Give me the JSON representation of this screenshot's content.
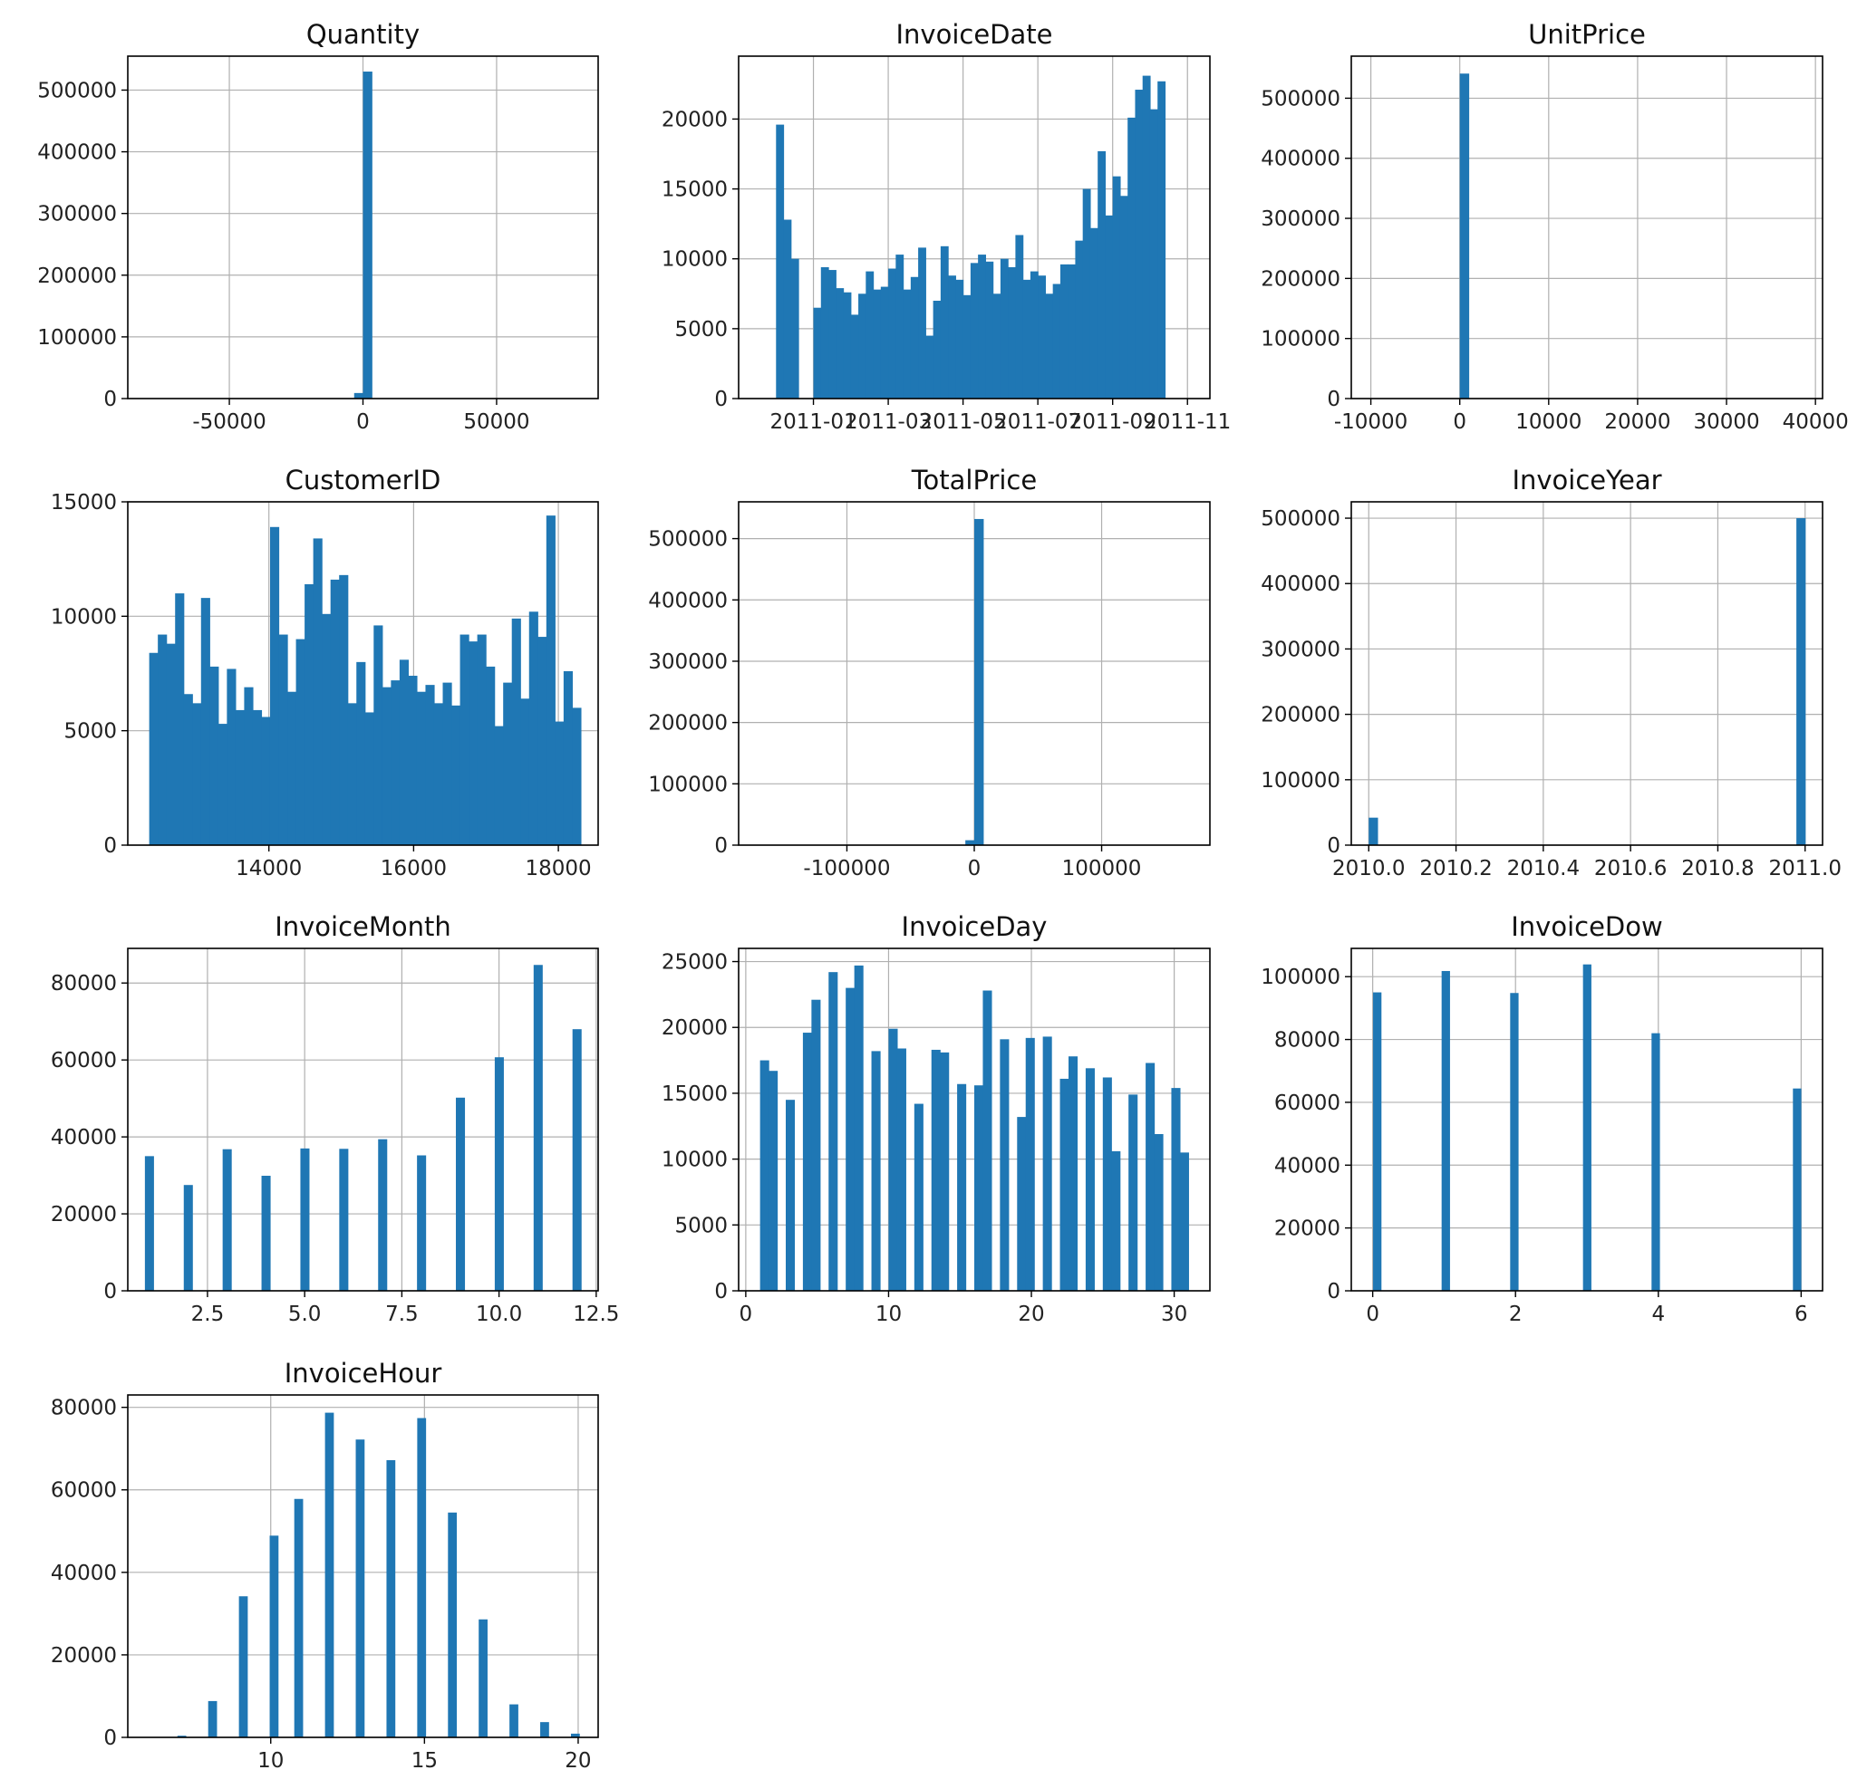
{
  "chart_data": [
    {
      "type": "bar",
      "title": "Quantity",
      "bar_color": "#1f77b4",
      "grid": true,
      "xlim": [
        -88000,
        88000
      ],
      "ylim": [
        0,
        555000
      ],
      "xticks": [
        {
          "v": -50000,
          "label": "-50000"
        },
        {
          "v": 0,
          "label": "0"
        },
        {
          "v": 50000,
          "label": "50000"
        }
      ],
      "yticks": [
        {
          "v": 0,
          "label": "0"
        },
        {
          "v": 100000,
          "label": "100000"
        },
        {
          "v": 200000,
          "label": "200000"
        },
        {
          "v": 300000,
          "label": "300000"
        },
        {
          "v": 400000,
          "label": "400000"
        },
        {
          "v": 500000,
          "label": "500000"
        }
      ],
      "bins": [
        [
          -3300,
          0,
          9000
        ],
        [
          0,
          3300,
          530000
        ]
      ]
    },
    {
      "type": "bar",
      "title": "InvoiceDate",
      "bar_color": "#1f77b4",
      "grid": true,
      "xlim": [
        -1.0,
        11.6
      ],
      "ylim": [
        0,
        24500
      ],
      "xticks": [
        {
          "v": 1,
          "label": "2011-01"
        },
        {
          "v": 3,
          "label": "2011-03"
        },
        {
          "v": 5,
          "label": "2011-05"
        },
        {
          "v": 7,
          "label": "2011-07"
        },
        {
          "v": 9,
          "label": "2011-09"
        },
        {
          "v": 11,
          "label": "2011-11"
        }
      ],
      "yticks": [
        {
          "v": 0,
          "label": "0"
        },
        {
          "v": 5000,
          "label": "5000"
        },
        {
          "v": 10000,
          "label": "10000"
        },
        {
          "v": 15000,
          "label": "15000"
        },
        {
          "v": 20000,
          "label": "20000"
        }
      ],
      "bin_start": 0.0,
      "bin_width": 0.2,
      "values": [
        19600,
        12800,
        10000,
        0,
        0,
        6500,
        9400,
        9200,
        7900,
        7600,
        6000,
        7500,
        9100,
        7800,
        8000,
        9300,
        10300,
        7800,
        8700,
        10800,
        4500,
        7000,
        10900,
        8800,
        8500,
        7400,
        9700,
        10300,
        9800,
        7500,
        10000,
        9400,
        11700,
        8500,
        9100,
        8800,
        7500,
        8200,
        9600,
        9600,
        11300,
        15000,
        12200,
        17700,
        13100,
        15900,
        14500,
        20100,
        22100,
        23100,
        20700,
        22700
      ]
    },
    {
      "type": "bar",
      "title": "UnitPrice",
      "bar_color": "#1f77b4",
      "grid": true,
      "xlim": [
        -12200,
        40800
      ],
      "ylim": [
        0,
        570000
      ],
      "xticks": [
        {
          "v": -10000,
          "label": "-10000"
        },
        {
          "v": 0,
          "label": "0"
        },
        {
          "v": 10000,
          "label": "10000"
        },
        {
          "v": 20000,
          "label": "20000"
        },
        {
          "v": 30000,
          "label": "30000"
        },
        {
          "v": 40000,
          "label": "40000"
        }
      ],
      "yticks": [
        {
          "v": 0,
          "label": "0"
        },
        {
          "v": 100000,
          "label": "100000"
        },
        {
          "v": 200000,
          "label": "200000"
        },
        {
          "v": 300000,
          "label": "300000"
        },
        {
          "v": 400000,
          "label": "400000"
        },
        {
          "v": 500000,
          "label": "500000"
        }
      ],
      "bins": [
        [
          0,
          1000,
          541000
        ]
      ]
    },
    {
      "type": "bar",
      "title": "CustomerID",
      "bar_color": "#1f77b4",
      "grid": true,
      "xlim": [
        12050,
        18550
      ],
      "ylim": [
        0,
        15000
      ],
      "xticks": [
        {
          "v": 14000,
          "label": "14000"
        },
        {
          "v": 16000,
          "label": "16000"
        },
        {
          "v": 18000,
          "label": "18000"
        }
      ],
      "yticks": [
        {
          "v": 0,
          "label": "0"
        },
        {
          "v": 5000,
          "label": "5000"
        },
        {
          "v": 10000,
          "label": "10000"
        },
        {
          "v": 15000,
          "label": "15000"
        }
      ],
      "bin_start": 12346,
      "bin_width": 119.3,
      "values": [
        8400,
        9200,
        8800,
        11000,
        6600,
        6200,
        10800,
        7800,
        5300,
        7700,
        5900,
        6900,
        5900,
        5600,
        13900,
        9200,
        6700,
        9000,
        11400,
        13400,
        10100,
        11600,
        11800,
        6200,
        8000,
        5800,
        9600,
        6900,
        7200,
        8100,
        7400,
        6700,
        7000,
        6200,
        7100,
        6100,
        9200,
        8900,
        9200,
        7800,
        5200,
        7100,
        9900,
        6400,
        10200,
        9100,
        14400,
        5400,
        7600,
        6000
      ]
    },
    {
      "type": "bar",
      "title": "TotalPrice",
      "bar_color": "#1f77b4",
      "grid": true,
      "xlim": [
        -185000,
        185000
      ],
      "ylim": [
        0,
        560000
      ],
      "xticks": [
        {
          "v": -100000,
          "label": "-100000"
        },
        {
          "v": 0,
          "label": "0"
        },
        {
          "v": 100000,
          "label": "100000"
        }
      ],
      "yticks": [
        {
          "v": 0,
          "label": "0"
        },
        {
          "v": 100000,
          "label": "100000"
        },
        {
          "v": 200000,
          "label": "200000"
        },
        {
          "v": 300000,
          "label": "300000"
        },
        {
          "v": 400000,
          "label": "400000"
        },
        {
          "v": 500000,
          "label": "500000"
        }
      ],
      "bins": [
        [
          -7000,
          0,
          8000
        ],
        [
          0,
          7000,
          532000
        ]
      ]
    },
    {
      "type": "bar",
      "title": "InvoiceYear",
      "bar_color": "#1f77b4",
      "grid": true,
      "xlim": [
        2009.96,
        2011.04
      ],
      "ylim": [
        0,
        525000
      ],
      "xticks": [
        {
          "v": 2010.0,
          "label": "2010.0"
        },
        {
          "v": 2010.2,
          "label": "2010.2"
        },
        {
          "v": 2010.4,
          "label": "2010.4"
        },
        {
          "v": 2010.6,
          "label": "2010.6"
        },
        {
          "v": 2010.8,
          "label": "2010.8"
        },
        {
          "v": 2011.0,
          "label": "2011.0"
        }
      ],
      "yticks": [
        {
          "v": 0,
          "label": "0"
        },
        {
          "v": 100000,
          "label": "100000"
        },
        {
          "v": 200000,
          "label": "200000"
        },
        {
          "v": 300000,
          "label": "300000"
        },
        {
          "v": 400000,
          "label": "400000"
        },
        {
          "v": 500000,
          "label": "500000"
        }
      ],
      "bins": [
        [
          2010.0,
          2010.02,
          42000
        ],
        [
          2010.98,
          2011.0,
          500000
        ]
      ]
    },
    {
      "type": "bar",
      "title": "InvoiceMonth",
      "bar_color": "#1f77b4",
      "grid": true,
      "xlim": [
        0.45,
        12.55
      ],
      "ylim": [
        0,
        89000
      ],
      "xticks": [
        {
          "v": 2.5,
          "label": "2.5"
        },
        {
          "v": 5.0,
          "label": "5.0"
        },
        {
          "v": 7.5,
          "label": "7.5"
        },
        {
          "v": 10.0,
          "label": "10.0"
        },
        {
          "v": 12.5,
          "label": "12.5"
        }
      ],
      "yticks": [
        {
          "v": 0,
          "label": "0"
        },
        {
          "v": 20000,
          "label": "20000"
        },
        {
          "v": 40000,
          "label": "40000"
        },
        {
          "v": 60000,
          "label": "60000"
        },
        {
          "v": 80000,
          "label": "80000"
        }
      ],
      "bar_width": 0.22,
      "points": [
        [
          1,
          35000
        ],
        [
          2,
          27500
        ],
        [
          3,
          36800
        ],
        [
          4,
          29900
        ],
        [
          5,
          37000
        ],
        [
          6,
          36900
        ],
        [
          7,
          39400
        ],
        [
          8,
          35200
        ],
        [
          9,
          50200
        ],
        [
          10,
          60700
        ],
        [
          11,
          84700
        ],
        [
          12,
          68000
        ]
      ]
    },
    {
      "type": "bar",
      "title": "InvoiceDay",
      "bar_color": "#1f77b4",
      "grid": true,
      "xlim": [
        -0.5,
        32.5
      ],
      "ylim": [
        0,
        26000
      ],
      "xticks": [
        {
          "v": 0,
          "label": "0"
        },
        {
          "v": 10,
          "label": "10"
        },
        {
          "v": 20,
          "label": "20"
        },
        {
          "v": 30,
          "label": "30"
        }
      ],
      "yticks": [
        {
          "v": 0,
          "label": "0"
        },
        {
          "v": 5000,
          "label": "5000"
        },
        {
          "v": 10000,
          "label": "10000"
        },
        {
          "v": 15000,
          "label": "15000"
        },
        {
          "v": 20000,
          "label": "20000"
        },
        {
          "v": 25000,
          "label": "25000"
        }
      ],
      "bar_width": 0.6,
      "points": [
        [
          1.3,
          17500
        ],
        [
          1.9,
          16700
        ],
        [
          3.1,
          14500
        ],
        [
          4.3,
          19600
        ],
        [
          4.9,
          22100
        ],
        [
          6.1,
          24200
        ],
        [
          7.3,
          23000
        ],
        [
          7.9,
          24700
        ],
        [
          9.1,
          18200
        ],
        [
          10.3,
          19900
        ],
        [
          10.9,
          18400
        ],
        [
          12.1,
          14200
        ],
        [
          13.3,
          18300
        ],
        [
          13.9,
          18100
        ],
        [
          15.1,
          15700
        ],
        [
          16.3,
          15600
        ],
        [
          16.9,
          22800
        ],
        [
          18.1,
          19100
        ],
        [
          19.3,
          13200
        ],
        [
          19.9,
          19200
        ],
        [
          21.1,
          19300
        ],
        [
          22.3,
          16100
        ],
        [
          22.9,
          17800
        ],
        [
          24.1,
          16900
        ],
        [
          25.3,
          16200
        ],
        [
          25.9,
          10600
        ],
        [
          27.1,
          14900
        ],
        [
          28.3,
          17300
        ],
        [
          28.9,
          11900
        ],
        [
          30.1,
          15400
        ],
        [
          30.7,
          10500
        ]
      ]
    },
    {
      "type": "bar",
      "title": "InvoiceDow",
      "bar_color": "#1f77b4",
      "grid": true,
      "xlim": [
        -0.3,
        6.3
      ],
      "ylim": [
        0,
        109000
      ],
      "xticks": [
        {
          "v": 0,
          "label": "0"
        },
        {
          "v": 2,
          "label": "2"
        },
        {
          "v": 4,
          "label": "4"
        },
        {
          "v": 6,
          "label": "6"
        }
      ],
      "yticks": [
        {
          "v": 0,
          "label": "0"
        },
        {
          "v": 20000,
          "label": "20000"
        },
        {
          "v": 40000,
          "label": "40000"
        },
        {
          "v": 60000,
          "label": "60000"
        },
        {
          "v": 80000,
          "label": "80000"
        },
        {
          "v": 100000,
          "label": "100000"
        }
      ],
      "bar_width": 0.11,
      "points": [
        [
          0.06,
          95000
        ],
        [
          1.02,
          101800
        ],
        [
          1.98,
          94800
        ],
        [
          3.0,
          103900
        ],
        [
          3.96,
          82000
        ],
        [
          5.94,
          64400
        ]
      ]
    },
    {
      "type": "bar",
      "title": "InvoiceHour",
      "bar_color": "#1f77b4",
      "grid": true,
      "xlim": [
        5.35,
        20.65
      ],
      "ylim": [
        0,
        83000
      ],
      "xticks": [
        {
          "v": 10,
          "label": "10"
        },
        {
          "v": 15,
          "label": "15"
        },
        {
          "v": 20,
          "label": "20"
        }
      ],
      "yticks": [
        {
          "v": 0,
          "label": "0"
        },
        {
          "v": 20000,
          "label": "20000"
        },
        {
          "v": 40000,
          "label": "40000"
        },
        {
          "v": 60000,
          "label": "60000"
        },
        {
          "v": 80000,
          "label": "80000"
        }
      ],
      "bar_width": 0.27,
      "points": [
        [
          7.1,
          400
        ],
        [
          8.1,
          8800
        ],
        [
          9.1,
          34200
        ],
        [
          10.1,
          48900
        ],
        [
          10.9,
          57800
        ],
        [
          11.9,
          78700
        ],
        [
          12.9,
          72200
        ],
        [
          13.9,
          67200
        ],
        [
          14.9,
          77400
        ],
        [
          15.9,
          54500
        ],
        [
          16.9,
          28600
        ],
        [
          17.9,
          8000
        ],
        [
          18.9,
          3700
        ],
        [
          19.9,
          900
        ]
      ]
    }
  ]
}
